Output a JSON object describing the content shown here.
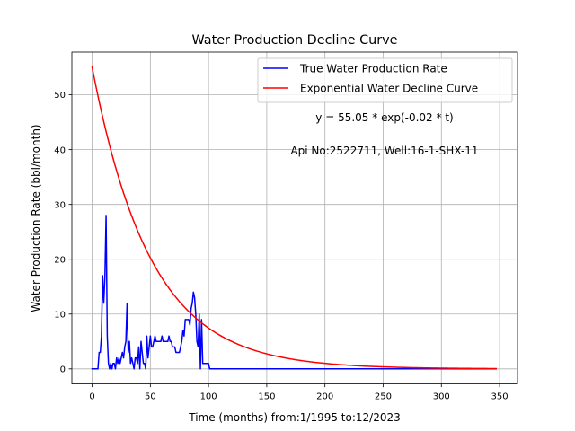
{
  "chart_data": {
    "type": "line",
    "title": "Water Production Decline Curve",
    "xlabel": "Time (months) from:1/1995 to:12/2023",
    "ylabel": "Water Production Rate (bbl/month)",
    "xlim": [
      -17.4,
      365.4
    ],
    "ylim": [
      -2.75,
      57.8
    ],
    "xticks": [
      0,
      50,
      100,
      150,
      200,
      250,
      300,
      350
    ],
    "yticks": [
      0,
      10,
      20,
      30,
      40,
      50
    ],
    "grid": true,
    "legend_position": "upper right",
    "annotations": [
      "y = 55.05 * exp(-0.02 * t)",
      "Api No:2522711, Well:16-1-SHX-11"
    ],
    "series": [
      {
        "name": "True Water Production Rate",
        "color": "#0000ff",
        "x": [
          0,
          1,
          2,
          3,
          4,
          5,
          6,
          7,
          8,
          9,
          10,
          11,
          12,
          13,
          14,
          15,
          16,
          17,
          18,
          19,
          20,
          21,
          22,
          23,
          24,
          25,
          26,
          27,
          28,
          29,
          30,
          31,
          32,
          33,
          34,
          35,
          36,
          37,
          38,
          39,
          40,
          41,
          42,
          43,
          44,
          45,
          46,
          47,
          48,
          49,
          50,
          51,
          52,
          53,
          54,
          55,
          56,
          57,
          58,
          59,
          60,
          61,
          62,
          63,
          64,
          65,
          66,
          67,
          68,
          69,
          70,
          71,
          72,
          73,
          74,
          75,
          76,
          77,
          78,
          79,
          80,
          81,
          82,
          83,
          84,
          85,
          86,
          87,
          88,
          89,
          90,
          91,
          92,
          93,
          94,
          95,
          96,
          97,
          98,
          99,
          100,
          101,
          347
        ],
        "values": [
          0,
          0,
          0,
          0,
          0,
          0,
          3,
          3,
          6,
          17,
          12,
          17,
          28,
          6,
          1,
          0,
          1,
          0,
          1,
          1,
          0,
          2,
          1,
          2,
          1,
          2,
          3,
          2,
          4,
          5,
          12,
          3,
          5,
          1,
          2,
          1,
          0,
          2,
          2,
          1,
          4,
          0,
          5,
          3,
          1,
          1,
          0,
          6,
          2,
          4,
          6,
          4,
          4,
          5,
          6,
          5,
          5,
          5,
          5,
          5,
          6,
          5,
          5,
          5,
          5,
          5,
          6,
          5,
          5,
          4,
          4,
          4,
          3,
          3,
          3,
          3,
          4,
          5,
          7,
          6,
          9,
          9,
          9,
          9,
          8,
          11,
          12,
          14,
          13,
          10,
          5,
          4,
          10,
          0,
          9,
          1,
          1,
          1,
          1,
          1,
          1,
          0,
          0
        ]
      },
      {
        "name": "Exponential Water Decline Curve",
        "color": "#ff0000",
        "model": {
          "a": 55.05,
          "b": -0.02,
          "x_start": 0,
          "x_end": 347,
          "step": 1
        }
      }
    ]
  }
}
